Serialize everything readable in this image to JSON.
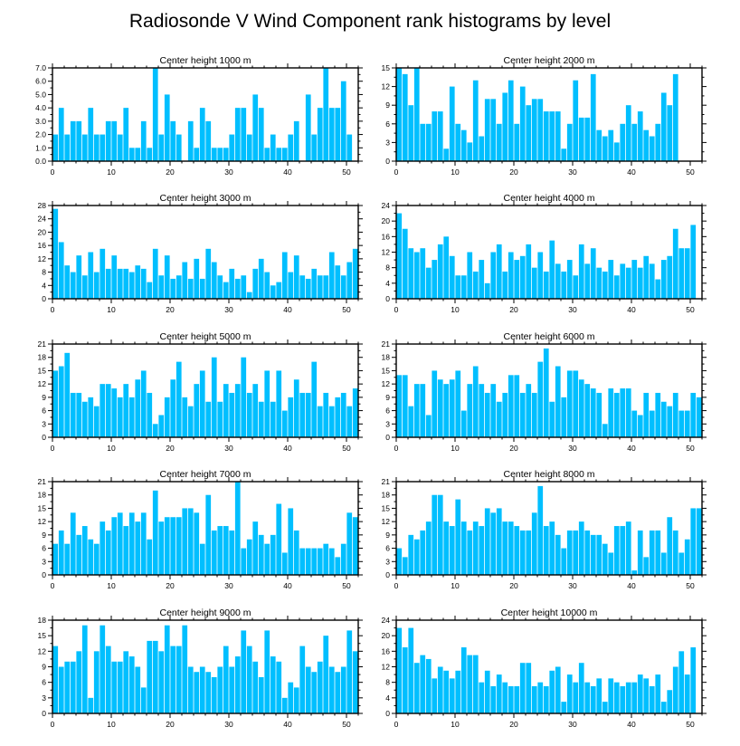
{
  "title": "Radiosonde V Wind Component rank histograms by level",
  "colors": {
    "bar": "#00bfff",
    "axis": "#000000",
    "background": "#ffffff"
  },
  "chart_data": [
    {
      "type": "bar",
      "title": "Center height 1000 m",
      "x": [
        0,
        1,
        2,
        3,
        4,
        5,
        6,
        7,
        8,
        9,
        10,
        11,
        12,
        13,
        14,
        15,
        16,
        17,
        18,
        19,
        20,
        21,
        22,
        23,
        24,
        25,
        26,
        27,
        28,
        29,
        30,
        31,
        32,
        33,
        34,
        35,
        36,
        37,
        38,
        39,
        40,
        41,
        42,
        43,
        44,
        45,
        46,
        47,
        48,
        49,
        50,
        51
      ],
      "values": [
        2,
        4,
        2,
        3,
        3,
        2,
        4,
        2,
        2,
        3,
        3,
        2,
        4,
        1,
        1,
        3,
        1,
        7,
        2,
        5,
        3,
        2,
        0,
        3,
        1,
        4,
        3,
        1,
        1,
        1,
        2,
        4,
        4,
        2,
        5,
        4,
        1,
        2,
        1,
        1,
        2,
        3,
        0,
        5,
        2,
        4,
        7,
        4,
        4,
        6,
        2,
        0
      ],
      "xlim": [
        0,
        52
      ],
      "ylim": [
        0,
        7
      ],
      "xticks": [
        0,
        10,
        20,
        30,
        40,
        50
      ],
      "yticks": [
        "0.0",
        "1.0",
        "2.0",
        "3.0",
        "4.0",
        "5.0",
        "6.0",
        "7.0"
      ]
    },
    {
      "type": "bar",
      "title": "Center height 2000 m",
      "x": [
        0,
        1,
        2,
        3,
        4,
        5,
        6,
        7,
        8,
        9,
        10,
        11,
        12,
        13,
        14,
        15,
        16,
        17,
        18,
        19,
        20,
        21,
        22,
        23,
        24,
        25,
        26,
        27,
        28,
        29,
        30,
        31,
        32,
        33,
        34,
        35,
        36,
        37,
        38,
        39,
        40,
        41,
        42,
        43,
        44,
        45,
        46,
        47,
        48,
        49,
        50,
        51
      ],
      "values": [
        15,
        14,
        9,
        15,
        6,
        6,
        8,
        8,
        2,
        12,
        6,
        5,
        3,
        13,
        4,
        10,
        10,
        6,
        11,
        13,
        6,
        12,
        9,
        10,
        10,
        8,
        8,
        8,
        2,
        6,
        13,
        7,
        7,
        14,
        5,
        4,
        5,
        3,
        6,
        9,
        6,
        8,
        5,
        4,
        6,
        11,
        9,
        14,
        0,
        0,
        0,
        0
      ],
      "xlim": [
        0,
        52
      ],
      "ylim": [
        0,
        15
      ],
      "xticks": [
        0,
        10,
        20,
        30,
        40,
        50
      ],
      "yticks": [
        "0",
        "3",
        "6",
        "9",
        "12",
        "15"
      ]
    },
    {
      "type": "bar",
      "title": "Center height 3000 m",
      "x": [
        0,
        1,
        2,
        3,
        4,
        5,
        6,
        7,
        8,
        9,
        10,
        11,
        12,
        13,
        14,
        15,
        16,
        17,
        18,
        19,
        20,
        21,
        22,
        23,
        24,
        25,
        26,
        27,
        28,
        29,
        30,
        31,
        32,
        33,
        34,
        35,
        36,
        37,
        38,
        39,
        40,
        41,
        42,
        43,
        44,
        45,
        46,
        47,
        48,
        49,
        50,
        51
      ],
      "values": [
        27,
        17,
        10,
        8,
        13,
        7,
        14,
        8,
        15,
        9,
        13,
        9,
        9,
        8,
        10,
        9,
        5,
        15,
        7,
        13,
        6,
        7,
        11,
        6,
        12,
        6,
        15,
        11,
        7,
        5,
        9,
        6,
        7,
        2,
        9,
        12,
        8,
        4,
        5,
        14,
        8,
        13,
        7,
        6,
        9,
        7,
        7,
        14,
        10,
        7,
        11,
        15
      ],
      "xlim": [
        0,
        52
      ],
      "ylim": [
        0,
        28
      ],
      "xticks": [
        0,
        10,
        20,
        30,
        40,
        50
      ],
      "yticks": [
        "0",
        "4",
        "8",
        "12",
        "16",
        "20",
        "24",
        "28"
      ]
    },
    {
      "type": "bar",
      "title": "Center height 4000 m",
      "x": [
        0,
        1,
        2,
        3,
        4,
        5,
        6,
        7,
        8,
        9,
        10,
        11,
        12,
        13,
        14,
        15,
        16,
        17,
        18,
        19,
        20,
        21,
        22,
        23,
        24,
        25,
        26,
        27,
        28,
        29,
        30,
        31,
        32,
        33,
        34,
        35,
        36,
        37,
        38,
        39,
        40,
        41,
        42,
        43,
        44,
        45,
        46,
        47,
        48,
        49,
        50,
        51
      ],
      "values": [
        22,
        18,
        13,
        12,
        13,
        8,
        10,
        14,
        16,
        11,
        6,
        6,
        12,
        7,
        10,
        4,
        12,
        14,
        7,
        12,
        10,
        11,
        14,
        8,
        12,
        7,
        15,
        9,
        7,
        10,
        6,
        14,
        9,
        13,
        8,
        7,
        10,
        6,
        9,
        8,
        10,
        8,
        11,
        9,
        5,
        10,
        11,
        18,
        13,
        13,
        19,
        0
      ],
      "xlim": [
        0,
        52
      ],
      "ylim": [
        0,
        24
      ],
      "xticks": [
        0,
        10,
        20,
        30,
        40,
        50
      ],
      "yticks": [
        "0",
        "4",
        "8",
        "12",
        "16",
        "20",
        "24"
      ]
    },
    {
      "type": "bar",
      "title": "Center height 5000 m",
      "x": [
        0,
        1,
        2,
        3,
        4,
        5,
        6,
        7,
        8,
        9,
        10,
        11,
        12,
        13,
        14,
        15,
        16,
        17,
        18,
        19,
        20,
        21,
        22,
        23,
        24,
        25,
        26,
        27,
        28,
        29,
        30,
        31,
        32,
        33,
        34,
        35,
        36,
        37,
        38,
        39,
        40,
        41,
        42,
        43,
        44,
        45,
        46,
        47,
        48,
        49,
        50,
        51
      ],
      "values": [
        15,
        16,
        19,
        10,
        10,
        8,
        9,
        7,
        12,
        12,
        11,
        9,
        12,
        9,
        13,
        15,
        10,
        3,
        5,
        9,
        13,
        17,
        9,
        7,
        12,
        15,
        8,
        18,
        8,
        12,
        10,
        12,
        18,
        10,
        12,
        8,
        15,
        8,
        15,
        6,
        9,
        13,
        10,
        10,
        17,
        7,
        10,
        7,
        9,
        10,
        7,
        11
      ],
      "xlim": [
        0,
        52
      ],
      "ylim": [
        0,
        21
      ],
      "xticks": [
        0,
        10,
        20,
        30,
        40,
        50
      ],
      "yticks": [
        "0",
        "3",
        "6",
        "9",
        "12",
        "15",
        "18",
        "21"
      ]
    },
    {
      "type": "bar",
      "title": "Center height 6000 m",
      "x": [
        0,
        1,
        2,
        3,
        4,
        5,
        6,
        7,
        8,
        9,
        10,
        11,
        12,
        13,
        14,
        15,
        16,
        17,
        18,
        19,
        20,
        21,
        22,
        23,
        24,
        25,
        26,
        27,
        28,
        29,
        30,
        31,
        32,
        33,
        34,
        35,
        36,
        37,
        38,
        39,
        40,
        41,
        42,
        43,
        44,
        45,
        46,
        47,
        48,
        49,
        50,
        51
      ],
      "values": [
        14,
        14,
        7,
        12,
        12,
        5,
        15,
        13,
        12,
        13,
        15,
        6,
        12,
        16,
        12,
        10,
        12,
        8,
        10,
        14,
        14,
        10,
        12,
        10,
        17,
        20,
        8,
        16,
        9,
        15,
        15,
        13,
        12,
        11,
        10,
        3,
        11,
        10,
        11,
        11,
        6,
        5,
        10,
        6,
        10,
        8,
        7,
        10,
        6,
        6,
        10,
        9
      ],
      "xlim": [
        0,
        52
      ],
      "ylim": [
        0,
        21
      ],
      "xticks": [
        0,
        10,
        20,
        30,
        40,
        50
      ],
      "yticks": [
        "0",
        "3",
        "6",
        "9",
        "12",
        "15",
        "18",
        "21"
      ]
    },
    {
      "type": "bar",
      "title": "Center height 7000 m",
      "x": [
        0,
        1,
        2,
        3,
        4,
        5,
        6,
        7,
        8,
        9,
        10,
        11,
        12,
        13,
        14,
        15,
        16,
        17,
        18,
        19,
        20,
        21,
        22,
        23,
        24,
        25,
        26,
        27,
        28,
        29,
        30,
        31,
        32,
        33,
        34,
        35,
        36,
        37,
        38,
        39,
        40,
        41,
        42,
        43,
        44,
        45,
        46,
        47,
        48,
        49,
        50,
        51
      ],
      "values": [
        7,
        10,
        7,
        14,
        9,
        11,
        8,
        7,
        12,
        10,
        13,
        14,
        11,
        14,
        12,
        14,
        8,
        19,
        12,
        13,
        13,
        13,
        15,
        15,
        14,
        7,
        18,
        10,
        11,
        11,
        10,
        21,
        6,
        8,
        12,
        9,
        7,
        9,
        16,
        5,
        15,
        10,
        6,
        6,
        6,
        6,
        7,
        6,
        4,
        7,
        14,
        13
      ],
      "xlim": [
        0,
        52
      ],
      "ylim": [
        0,
        21
      ],
      "xticks": [
        0,
        10,
        20,
        30,
        40,
        50
      ],
      "yticks": [
        "0",
        "3",
        "6",
        "9",
        "12",
        "15",
        "18",
        "21"
      ]
    },
    {
      "type": "bar",
      "title": "Center height 8000 m",
      "x": [
        0,
        1,
        2,
        3,
        4,
        5,
        6,
        7,
        8,
        9,
        10,
        11,
        12,
        13,
        14,
        15,
        16,
        17,
        18,
        19,
        20,
        21,
        22,
        23,
        24,
        25,
        26,
        27,
        28,
        29,
        30,
        31,
        32,
        33,
        34,
        35,
        36,
        37,
        38,
        39,
        40,
        41,
        42,
        43,
        44,
        45,
        46,
        47,
        48,
        49,
        50,
        51
      ],
      "values": [
        6,
        4,
        9,
        8,
        10,
        12,
        18,
        18,
        12,
        11,
        17,
        12,
        10,
        12,
        11,
        15,
        14,
        15,
        12,
        12,
        11,
        10,
        10,
        14,
        20,
        11,
        12,
        9,
        6,
        10,
        10,
        12,
        10,
        9,
        9,
        7,
        5,
        11,
        11,
        12,
        1,
        10,
        4,
        10,
        10,
        5,
        13,
        10,
        5,
        8,
        15,
        15
      ],
      "xlim": [
        0,
        52
      ],
      "ylim": [
        0,
        21
      ],
      "xticks": [
        0,
        10,
        20,
        30,
        40,
        50
      ],
      "yticks": [
        "0",
        "3",
        "6",
        "9",
        "12",
        "15",
        "18",
        "21"
      ]
    },
    {
      "type": "bar",
      "title": "Center height 9000 m",
      "x": [
        0,
        1,
        2,
        3,
        4,
        5,
        6,
        7,
        8,
        9,
        10,
        11,
        12,
        13,
        14,
        15,
        16,
        17,
        18,
        19,
        20,
        21,
        22,
        23,
        24,
        25,
        26,
        27,
        28,
        29,
        30,
        31,
        32,
        33,
        34,
        35,
        36,
        37,
        38,
        39,
        40,
        41,
        42,
        43,
        44,
        45,
        46,
        47,
        48,
        49,
        50,
        51
      ],
      "values": [
        13,
        9,
        10,
        10,
        12,
        17,
        3,
        12,
        17,
        13,
        10,
        10,
        12,
        11,
        9,
        5,
        14,
        14,
        12,
        17,
        13,
        13,
        17,
        9,
        8,
        9,
        8,
        7,
        9,
        13,
        9,
        11,
        16,
        13,
        10,
        7,
        16,
        11,
        10,
        3,
        6,
        5,
        13,
        9,
        8,
        10,
        15,
        9,
        8,
        9,
        16,
        12
      ],
      "xlim": [
        0,
        52
      ],
      "ylim": [
        0,
        18
      ],
      "xticks": [
        0,
        10,
        20,
        30,
        40,
        50
      ],
      "yticks": [
        "0",
        "3",
        "6",
        "9",
        "12",
        "15",
        "18"
      ]
    },
    {
      "type": "bar",
      "title": "Center height 10000 m",
      "x": [
        0,
        1,
        2,
        3,
        4,
        5,
        6,
        7,
        8,
        9,
        10,
        11,
        12,
        13,
        14,
        15,
        16,
        17,
        18,
        19,
        20,
        21,
        22,
        23,
        24,
        25,
        26,
        27,
        28,
        29,
        30,
        31,
        32,
        33,
        34,
        35,
        36,
        37,
        38,
        39,
        40,
        41,
        42,
        43,
        44,
        45,
        46,
        47,
        48,
        49,
        50,
        51
      ],
      "values": [
        22,
        17,
        22,
        13,
        15,
        14,
        9,
        12,
        11,
        9,
        11,
        17,
        15,
        15,
        8,
        11,
        7,
        10,
        8,
        7,
        7,
        13,
        13,
        7,
        8,
        7,
        11,
        12,
        3,
        10,
        8,
        13,
        8,
        7,
        9,
        3,
        9,
        8,
        7,
        8,
        8,
        10,
        9,
        7,
        10,
        3,
        6,
        12,
        16,
        10,
        17,
        0
      ],
      "xlim": [
        0,
        52
      ],
      "ylim": [
        0,
        24
      ],
      "xticks": [
        0,
        10,
        20,
        30,
        40,
        50
      ],
      "yticks": [
        "0",
        "4",
        "8",
        "12",
        "16",
        "20",
        "24"
      ]
    }
  ]
}
